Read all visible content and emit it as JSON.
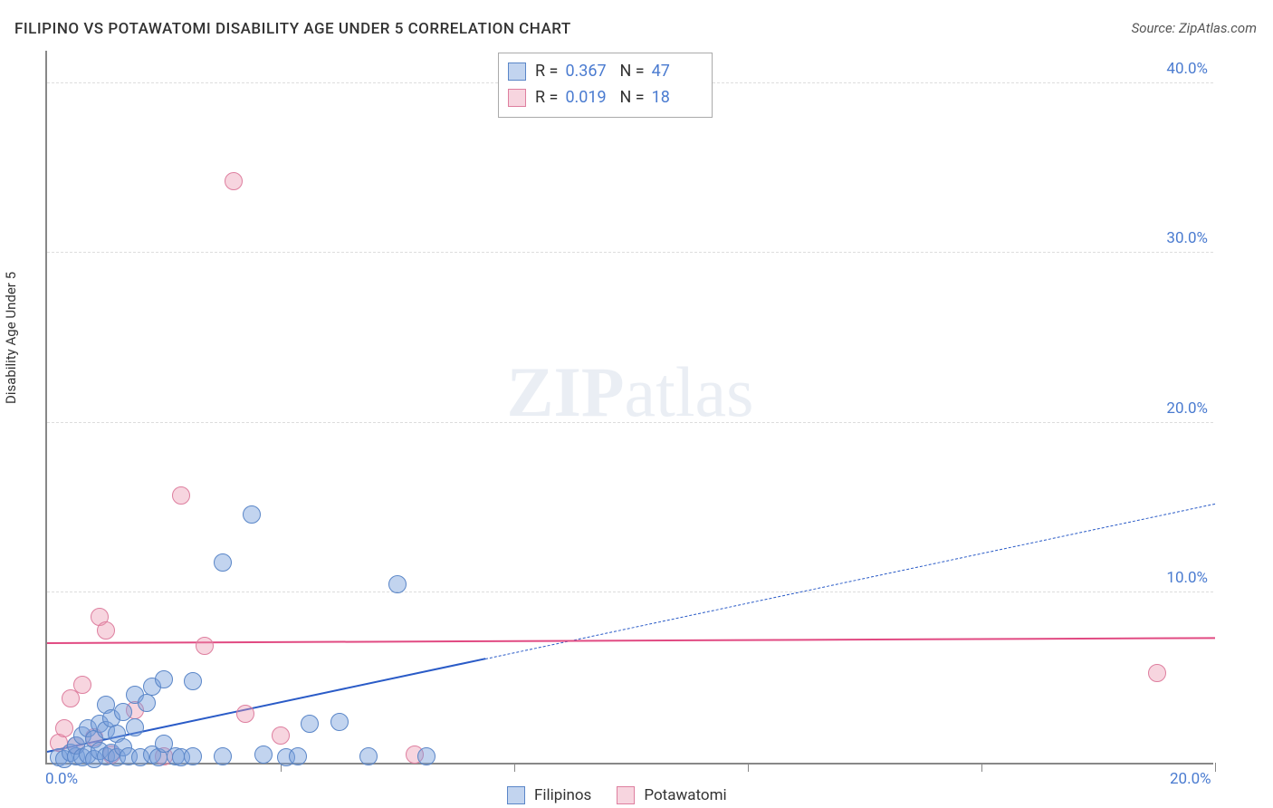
{
  "title": "FILIPINO VS POTAWATOMI DISABILITY AGE UNDER 5 CORRELATION CHART",
  "source_label": "Source: ZipAtlas.com",
  "y_axis_title": "Disability Age Under 5",
  "watermark": {
    "bold": "ZIP",
    "rest": "atlas"
  },
  "colors": {
    "series_a_fill": "rgba(120,160,220,0.45)",
    "series_a_stroke": "#5a86c8",
    "series_b_fill": "rgba(235,150,175,0.40)",
    "series_b_stroke": "#de7f9f",
    "trend_a": "#2a5bc7",
    "trend_b": "#e14a82",
    "tick_text": "#4a7bd0",
    "grid": "#dddddd",
    "axis": "#888888"
  },
  "chart": {
    "type": "scatter",
    "xlim": [
      0,
      20
    ],
    "ylim": [
      0,
      42
    ],
    "x_ticks": [
      0,
      4,
      8,
      12,
      16,
      20
    ],
    "x_tick_labels": [
      "0.0%",
      "",
      "",
      "",
      "",
      "20.0%"
    ],
    "y_ticks": [
      10,
      20,
      30,
      40
    ],
    "y_tick_labels": [
      "10.0%",
      "20.0%",
      "30.0%",
      "40.0%"
    ],
    "marker_radius": 10,
    "marker_border": 1.5
  },
  "stats": {
    "a": {
      "r_label": "R =",
      "r": "0.367",
      "n_label": "N =",
      "n": "47"
    },
    "b": {
      "r_label": "R =",
      "r": "0.019",
      "n_label": "N =",
      "n": "18"
    }
  },
  "series_labels": {
    "a": "Filipinos",
    "b": "Potawatomi"
  },
  "series_a_points": [
    [
      0.2,
      0.3
    ],
    [
      0.3,
      0.2
    ],
    [
      0.4,
      0.6
    ],
    [
      0.5,
      0.4
    ],
    [
      0.5,
      1.0
    ],
    [
      0.6,
      0.3
    ],
    [
      0.6,
      1.6
    ],
    [
      0.7,
      0.5
    ],
    [
      0.7,
      2.0
    ],
    [
      0.8,
      0.2
    ],
    [
      0.8,
      1.4
    ],
    [
      0.9,
      0.7
    ],
    [
      0.9,
      2.3
    ],
    [
      1.0,
      0.4
    ],
    [
      1.0,
      1.9
    ],
    [
      1.0,
      3.4
    ],
    [
      1.1,
      0.6
    ],
    [
      1.1,
      2.6
    ],
    [
      1.2,
      0.3
    ],
    [
      1.2,
      1.7
    ],
    [
      1.3,
      0.9
    ],
    [
      1.3,
      3.0
    ],
    [
      1.4,
      0.4
    ],
    [
      1.5,
      2.1
    ],
    [
      1.5,
      4.0
    ],
    [
      1.6,
      0.3
    ],
    [
      1.7,
      3.5
    ],
    [
      1.8,
      0.5
    ],
    [
      1.8,
      4.5
    ],
    [
      1.9,
      0.3
    ],
    [
      2.0,
      4.9
    ],
    [
      2.0,
      1.1
    ],
    [
      2.2,
      0.4
    ],
    [
      2.3,
      0.3
    ],
    [
      2.5,
      0.4
    ],
    [
      2.5,
      4.8
    ],
    [
      3.0,
      11.8
    ],
    [
      3.0,
      0.4
    ],
    [
      3.5,
      14.6
    ],
    [
      3.7,
      0.5
    ],
    [
      4.1,
      0.3
    ],
    [
      4.3,
      0.4
    ],
    [
      4.5,
      2.3
    ],
    [
      5.0,
      2.4
    ],
    [
      5.5,
      0.4
    ],
    [
      6.0,
      10.5
    ],
    [
      6.5,
      0.4
    ]
  ],
  "series_b_points": [
    [
      0.2,
      1.2
    ],
    [
      0.3,
      2.0
    ],
    [
      0.4,
      3.8
    ],
    [
      0.5,
      1.0
    ],
    [
      0.6,
      4.6
    ],
    [
      0.8,
      1.5
    ],
    [
      0.9,
      8.6
    ],
    [
      1.0,
      7.8
    ],
    [
      1.1,
      0.5
    ],
    [
      1.5,
      3.1
    ],
    [
      2.0,
      0.4
    ],
    [
      2.3,
      15.7
    ],
    [
      2.7,
      6.9
    ],
    [
      3.2,
      34.2
    ],
    [
      3.4,
      2.9
    ],
    [
      4.0,
      1.6
    ],
    [
      6.3,
      0.5
    ],
    [
      19.0,
      5.3
    ]
  ],
  "trend_lines": {
    "a": {
      "x1": 0,
      "y1": 0.6,
      "x2": 20,
      "y2": 15.2,
      "solid_until_x": 7.5
    },
    "b": {
      "x1": 0,
      "y1": 7.0,
      "x2": 20,
      "y2": 7.3
    }
  }
}
